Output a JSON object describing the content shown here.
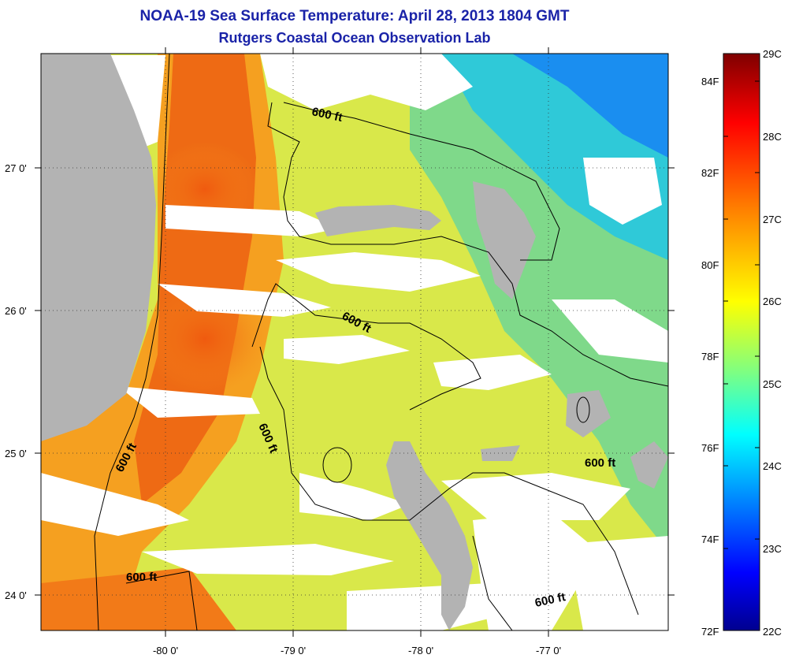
{
  "title": "NOAA-19 Sea Surface Temperature:  April 28, 2013 1804 GMT",
  "subtitle": "Rutgers Coastal Ocean Observation Lab",
  "lat_labels": [
    "27 0'",
    "26 0'",
    "25 0'",
    "24 0'"
  ],
  "lon_labels": [
    "-80 0'",
    "-79 0'",
    "-78 0'",
    "-77 0'"
  ],
  "contour_label": "600 ft",
  "colorbar": {
    "celsius": [
      "29C",
      "28C",
      "27C",
      "26C",
      "25C",
      "24C",
      "23C",
      "22C"
    ],
    "fahrenheit": [
      "84F",
      "82F",
      "80F",
      "78F",
      "76F",
      "74F",
      "72F"
    ],
    "stops": [
      "#7f0000",
      "#ff0000",
      "#ff8000",
      "#ffff00",
      "#80ff80",
      "#00ffff",
      "#0080ff",
      "#0000ff",
      "#00008f"
    ]
  },
  "colors": {
    "land": "#b3b3b3",
    "cloud": "#ffffff",
    "title": "#1a23a8"
  }
}
